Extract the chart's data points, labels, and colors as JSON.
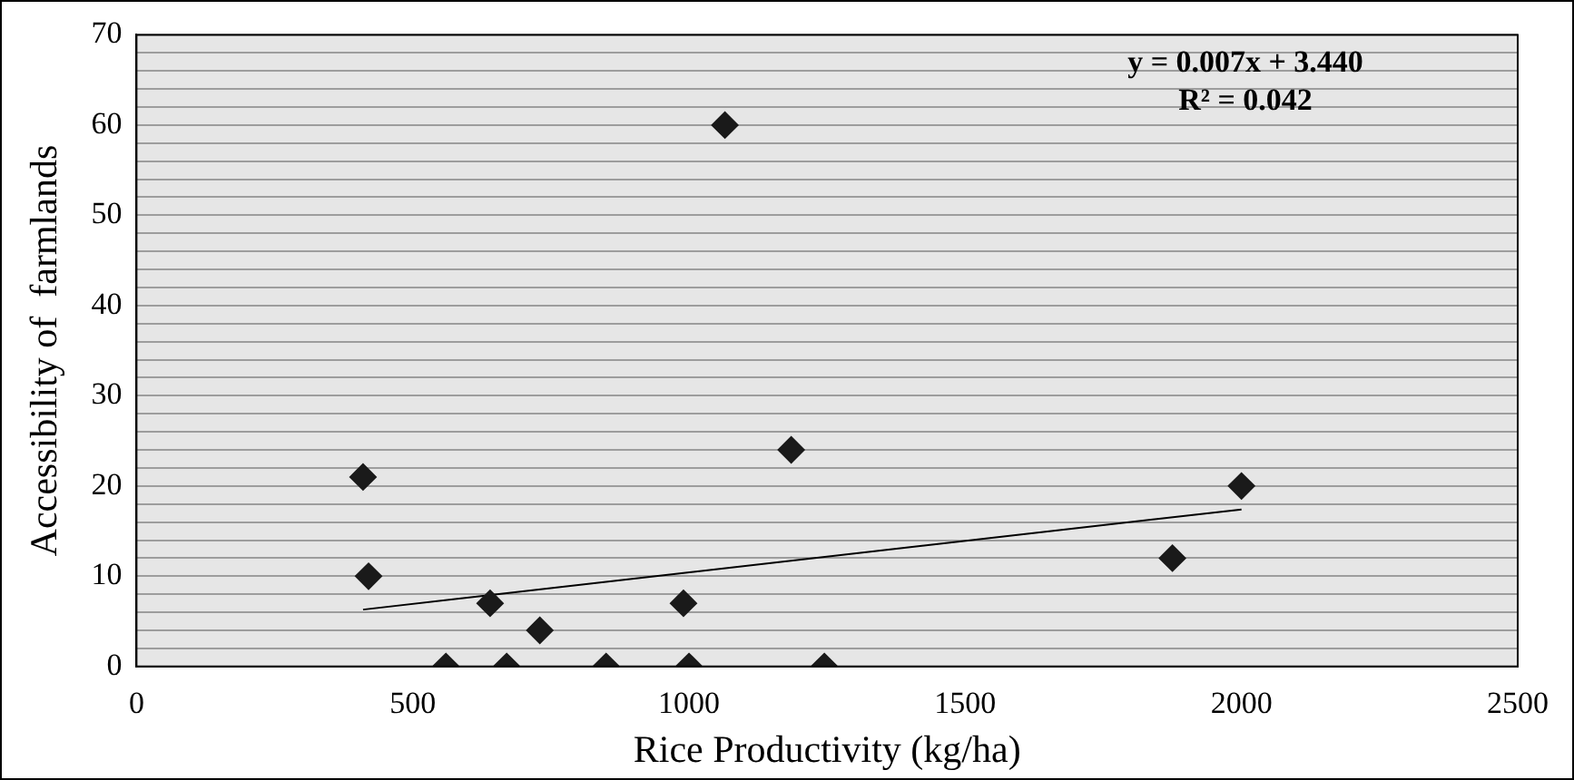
{
  "chart_data": {
    "type": "scatter",
    "xlabel": "Rice Productivity (kg/ha)",
    "ylabel": "Accessibility of  farmlands",
    "xlim": [
      0,
      2500
    ],
    "xticks": [
      0,
      500,
      1000,
      1500,
      2000,
      2500
    ],
    "ylim": [
      0,
      70
    ],
    "yticks": [
      0,
      {
        "value": 2,
        "label": null
      },
      {
        "value": 4,
        "label": null
      },
      {
        "value": 6,
        "label": null
      },
      {
        "value": 8,
        "label": null
      },
      10,
      {
        "value": 12,
        "label": null
      },
      {
        "value": 14,
        "label": null
      },
      {
        "value": 16,
        "label": null
      },
      {
        "value": 18,
        "label": null
      },
      20,
      {
        "value": 22,
        "label": null
      },
      {
        "value": 24,
        "label": null
      },
      {
        "value": 26,
        "label": null
      },
      {
        "value": 28,
        "label": null
      },
      30,
      {
        "value": 32,
        "label": null
      },
      {
        "value": 34,
        "label": null
      },
      {
        "value": 36,
        "label": null
      },
      {
        "value": 38,
        "label": null
      },
      40,
      {
        "value": 42,
        "label": null
      },
      {
        "value": 44,
        "label": null
      },
      {
        "value": 46,
        "label": null
      },
      {
        "value": 48,
        "label": null
      },
      50,
      {
        "value": 52,
        "label": null
      },
      {
        "value": 54,
        "label": null
      },
      {
        "value": 56,
        "label": null
      },
      {
        "value": 58,
        "label": null
      },
      60,
      {
        "value": 62,
        "label": null
      },
      {
        "value": 64,
        "label": null
      },
      {
        "value": 66,
        "label": null
      },
      {
        "value": 68,
        "label": null
      },
      70
    ],
    "grid": "y",
    "legend": false,
    "marker": "diamond",
    "annotations": [
      "y = 0.007x + 3.440",
      "R² = 0.042"
    ],
    "series": [
      {
        "color": "#1a1a1a",
        "x": [
          410,
          420,
          560,
          640,
          670,
          730,
          850,
          990,
          1000,
          1065,
          1185,
          1245,
          1875,
          2000
        ],
        "values": [
          21,
          10,
          0,
          7,
          0,
          4,
          0,
          7,
          0,
          60,
          24,
          0,
          12,
          20
        ]
      },
      {
        "type": "line",
        "color": "#000000",
        "marker": "none",
        "x": [
          410,
          2000
        ],
        "values": [
          6.3,
          17.4
        ]
      }
    ]
  }
}
